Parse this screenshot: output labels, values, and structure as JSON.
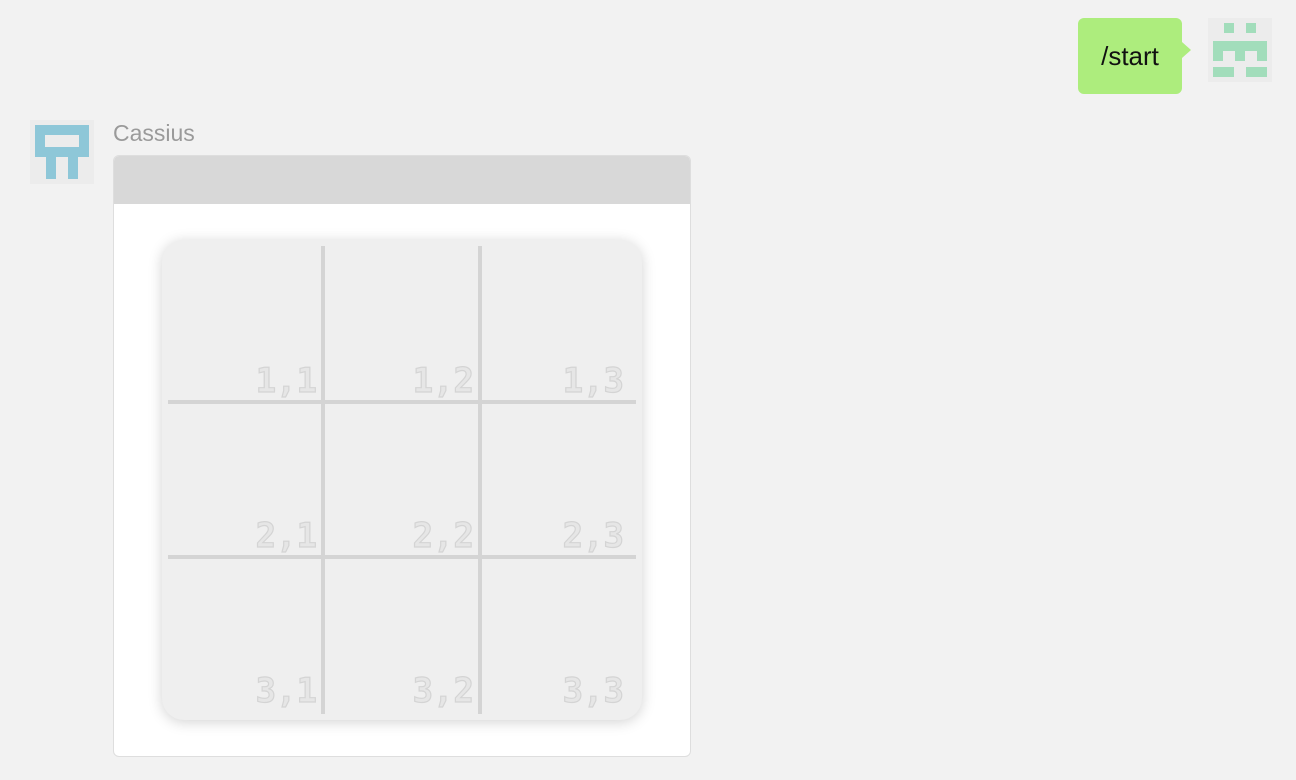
{
  "chat": {
    "outgoing": {
      "text": "/start"
    },
    "incoming": {
      "sender": "Cassius",
      "board": {
        "cells": [
          [
            "1,1",
            "1,2",
            "1,3"
          ],
          [
            "2,1",
            "2,2",
            "2,3"
          ],
          [
            "3,1",
            "3,2",
            "3,3"
          ]
        ]
      }
    }
  },
  "colors": {
    "background": "#f2f2f2",
    "outgoing_bubble": "#aded7d",
    "user_avatar": "#a2ddbb",
    "bot_avatar": "#8ec7d8",
    "card_header": "#d8d8d8",
    "board": "#efefef",
    "grid_line": "#d4d4d4"
  },
  "icons": {
    "user_avatar": "pixel-identicon",
    "bot_avatar": "pixel-identicon"
  }
}
